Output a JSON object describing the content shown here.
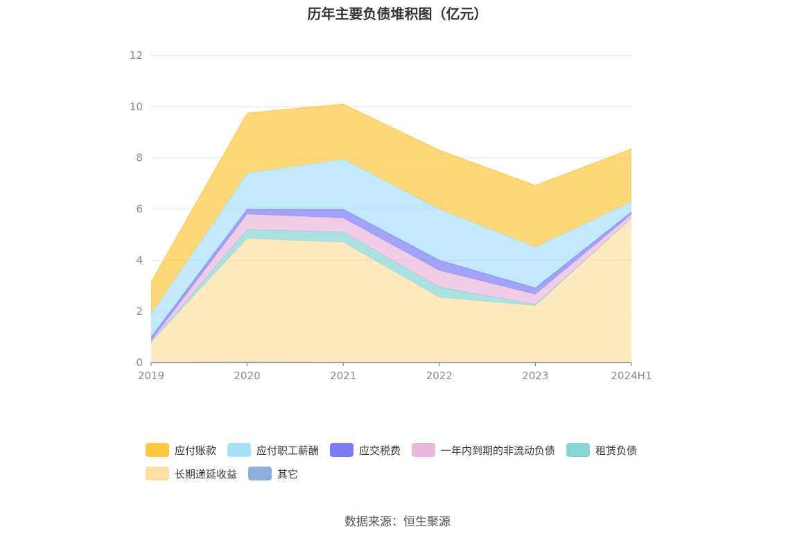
{
  "title": "历年主要负债堆积图（亿元）",
  "source": "数据来源：恒生聚源",
  "chart_data": {
    "type": "area",
    "stacked": true,
    "categories": [
      "2019",
      "2020",
      "2021",
      "2022",
      "2023",
      "2024H1"
    ],
    "ylim": [
      0,
      12
    ],
    "yticks": [
      "0",
      "2",
      "4",
      "6",
      "8",
      "10",
      "12"
    ],
    "grid": true,
    "legend_position": "bottom",
    "series": [
      {
        "name": "其它",
        "color": "#8eaedb",
        "values": [
          0.02,
          0.03,
          0.02,
          0.02,
          0.02,
          0.02
        ]
      },
      {
        "name": "长期递延收益",
        "color": "#ffdfa3",
        "values": [
          0.78,
          4.82,
          4.68,
          2.53,
          2.2,
          5.62
        ]
      },
      {
        "name": "租赁负债",
        "color": "#88d4d6",
        "values": [
          0.0,
          0.35,
          0.4,
          0.4,
          0.05,
          0.0
        ]
      },
      {
        "name": "一年内到期的非流动负债",
        "color": "#eab8dc",
        "values": [
          0.05,
          0.6,
          0.55,
          0.65,
          0.4,
          0.15
        ]
      },
      {
        "name": "应交税费",
        "color": "#7a7af2",
        "values": [
          0.15,
          0.2,
          0.35,
          0.4,
          0.25,
          0.1
        ]
      },
      {
        "name": "应付职工薪酬",
        "color": "#a6e0f7",
        "values": [
          0.9,
          1.4,
          1.95,
          2.0,
          1.6,
          0.4
        ]
      },
      {
        "name": "应付账款",
        "color": "#fcc741",
        "values": [
          1.25,
          2.35,
          2.15,
          2.3,
          2.4,
          2.06
        ]
      }
    ]
  },
  "legend": [
    {
      "label": "应付账款",
      "color": "#fcc741"
    },
    {
      "label": "应付职工薪酬",
      "color": "#a6e0f7"
    },
    {
      "label": "应交税费",
      "color": "#7a7af2"
    },
    {
      "label": "一年内到期的非流动负债",
      "color": "#eab8dc"
    },
    {
      "label": "租赁负债",
      "color": "#88d4d6"
    },
    {
      "label": "长期递延收益",
      "color": "#ffdfa3"
    },
    {
      "label": "其它",
      "color": "#8eaedb"
    }
  ]
}
